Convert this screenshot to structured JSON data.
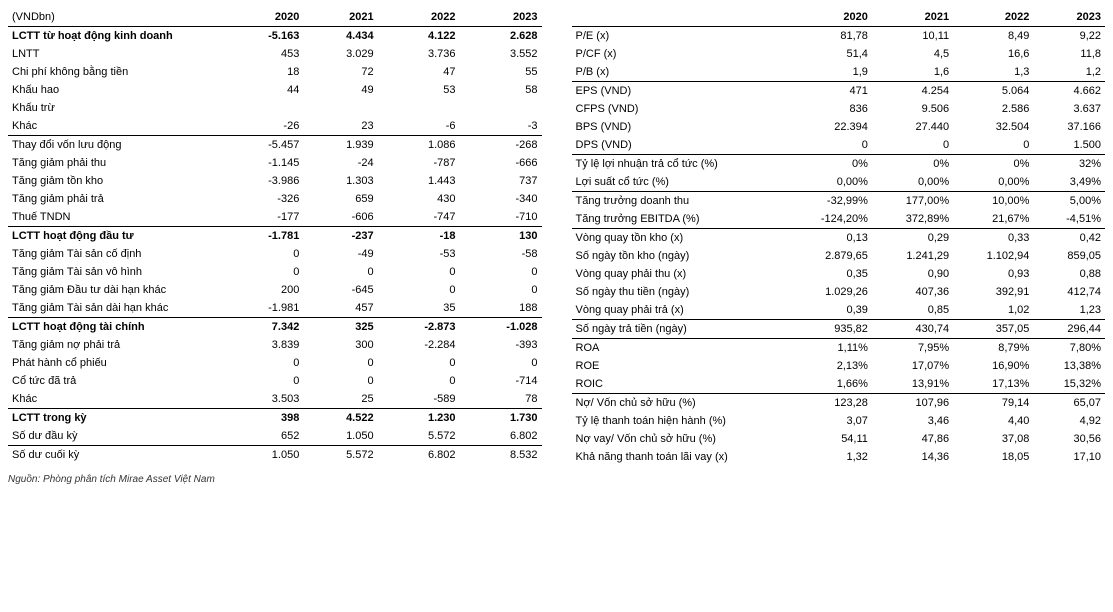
{
  "years": [
    "2020",
    "2021",
    "2022",
    "2023"
  ],
  "left_header": "(VNDbn)",
  "right_header": "",
  "source": "Nguồn: Phòng phân tích Mirae Asset Việt Nam",
  "left": [
    {
      "label": "LCTT từ hoạt động kinh doanh",
      "v": [
        "-5.163",
        "4.434",
        "4.122",
        "2.628"
      ],
      "bold": true,
      "sep": false
    },
    {
      "label": "LNTT",
      "v": [
        "453",
        "3.029",
        "3.736",
        "3.552"
      ],
      "bold": false,
      "sep": false
    },
    {
      "label": "Chi phí không bằng tiền",
      "v": [
        "18",
        "72",
        "47",
        "55"
      ],
      "bold": false,
      "sep": false
    },
    {
      "label": "Khấu hao",
      "v": [
        "44",
        "49",
        "53",
        "58"
      ],
      "bold": false,
      "sep": false
    },
    {
      "label": "Khấu trừ",
      "v": [
        "",
        "",
        "",
        ""
      ],
      "bold": false,
      "sep": false
    },
    {
      "label": "Khác",
      "v": [
        "-26",
        "23",
        "-6",
        "-3"
      ],
      "bold": false,
      "sep": false
    },
    {
      "label": "Thay đổi vốn lưu động",
      "v": [
        "-5.457",
        "1.939",
        "1.086",
        "-268"
      ],
      "bold": false,
      "sep": true
    },
    {
      "label": "Tăng giảm phải thu",
      "v": [
        "-1.145",
        "-24",
        "-787",
        "-666"
      ],
      "bold": false,
      "sep": false
    },
    {
      "label": "Tăng giảm tồn kho",
      "v": [
        "-3.986",
        "1.303",
        "1.443",
        "737"
      ],
      "bold": false,
      "sep": false
    },
    {
      "label": "Tăng giảm phải trả",
      "v": [
        "-326",
        "659",
        "430",
        "-340"
      ],
      "bold": false,
      "sep": false
    },
    {
      "label": "Thuế TNDN",
      "v": [
        "-177",
        "-606",
        "-747",
        "-710"
      ],
      "bold": false,
      "sep": false
    },
    {
      "label": "LCTT hoạt động đầu tư",
      "v": [
        "-1.781",
        "-237",
        "-18",
        "130"
      ],
      "bold": true,
      "sep": true
    },
    {
      "label": "Tăng giảm Tài sản cố định",
      "v": [
        "0",
        "-49",
        "-53",
        "-58"
      ],
      "bold": false,
      "sep": false
    },
    {
      "label": "Tăng giảm Tài sản vô hình",
      "v": [
        "0",
        "0",
        "0",
        "0"
      ],
      "bold": false,
      "sep": false
    },
    {
      "label": "Tăng giảm Đầu tư dài hạn khác",
      "v": [
        "200",
        "-645",
        "0",
        "0"
      ],
      "bold": false,
      "sep": false
    },
    {
      "label": "Tăng giảm Tài sản dài hạn khác",
      "v": [
        "-1.981",
        "457",
        "35",
        "188"
      ],
      "bold": false,
      "sep": false
    },
    {
      "label": "LCTT hoạt động tài chính",
      "v": [
        "7.342",
        "325",
        "-2.873",
        "-1.028"
      ],
      "bold": true,
      "sep": true
    },
    {
      "label": "Tăng giảm nợ phải trả",
      "v": [
        "3.839",
        "300",
        "-2.284",
        "-393"
      ],
      "bold": false,
      "sep": false
    },
    {
      "label": "Phát hành cổ phiếu",
      "v": [
        "0",
        "0",
        "0",
        "0"
      ],
      "bold": false,
      "sep": false
    },
    {
      "label": "Cổ tức đã trả",
      "v": [
        "0",
        "0",
        "0",
        "-714"
      ],
      "bold": false,
      "sep": false
    },
    {
      "label": "Khác",
      "v": [
        "3.503",
        "25",
        "-589",
        "78"
      ],
      "bold": false,
      "sep": false
    },
    {
      "label": "LCTT trong kỳ",
      "v": [
        "398",
        "4.522",
        "1.230",
        "1.730"
      ],
      "bold": true,
      "sep": true
    },
    {
      "label": "Số dư đầu kỳ",
      "v": [
        "652",
        "1.050",
        "5.572",
        "6.802"
      ],
      "bold": false,
      "sep": false
    },
    {
      "label": "Số dư cuối kỳ",
      "v": [
        "1.050",
        "5.572",
        "6.802",
        "8.532"
      ],
      "bold": false,
      "sep": true
    }
  ],
  "right": [
    {
      "label": "P/E (x)",
      "v": [
        "81,78",
        "10,11",
        "8,49",
        "9,22"
      ],
      "bold": false,
      "sep": false
    },
    {
      "label": "P/CF (x)",
      "v": [
        "51,4",
        "4,5",
        "16,6",
        "11,8"
      ],
      "bold": false,
      "sep": false
    },
    {
      "label": "P/B (x)",
      "v": [
        "1,9",
        "1,6",
        "1,3",
        "1,2"
      ],
      "bold": false,
      "sep": false
    },
    {
      "label": "EPS (VND)",
      "v": [
        "471",
        "4.254",
        "5.064",
        "4.662"
      ],
      "bold": false,
      "sep": true
    },
    {
      "label": "CFPS (VND)",
      "v": [
        "836",
        "9.506",
        "2.586",
        "3.637"
      ],
      "bold": false,
      "sep": false
    },
    {
      "label": "BPS (VND)",
      "v": [
        "22.394",
        "27.440",
        "32.504",
        "37.166"
      ],
      "bold": false,
      "sep": false
    },
    {
      "label": "DPS (VND)",
      "v": [
        "0",
        "0",
        "0",
        "1.500"
      ],
      "bold": false,
      "sep": false
    },
    {
      "label": "Tỷ lệ lợi nhuận trả cổ tức (%)",
      "v": [
        "0%",
        "0%",
        "0%",
        "32%"
      ],
      "bold": false,
      "sep": true
    },
    {
      "label": "Lợi suất cổ tức (%)",
      "v": [
        "0,00%",
        "0,00%",
        "0,00%",
        "3,49%"
      ],
      "bold": false,
      "sep": false
    },
    {
      "label": "Tăng trưởng doanh thu",
      "v": [
        "-32,99%",
        "177,00%",
        "10,00%",
        "5,00%"
      ],
      "bold": false,
      "sep": true
    },
    {
      "label": "Tăng trưởng EBITDA  (%)",
      "v": [
        "-124,20%",
        "372,89%",
        "21,67%",
        "-4,51%"
      ],
      "bold": false,
      "sep": false
    },
    {
      "label": "Vòng quay tồn kho (x)",
      "v": [
        "0,13",
        "0,29",
        "0,33",
        "0,42"
      ],
      "bold": false,
      "sep": true
    },
    {
      "label": "Số ngày tồn kho (ngày)",
      "v": [
        "2.879,65",
        "1.241,29",
        "1.102,94",
        "859,05"
      ],
      "bold": false,
      "sep": false
    },
    {
      "label": "Vòng quay phải thu (x)",
      "v": [
        "0,35",
        "0,90",
        "0,93",
        "0,88"
      ],
      "bold": false,
      "sep": false
    },
    {
      "label": "Số ngày thu tiền (ngày)",
      "v": [
        "1.029,26",
        "407,36",
        "392,91",
        "412,74"
      ],
      "bold": false,
      "sep": false
    },
    {
      "label": "Vòng quay phải trả (x)",
      "v": [
        "0,39",
        "0,85",
        "1,02",
        "1,23"
      ],
      "bold": false,
      "sep": false
    },
    {
      "label": "Số ngày trả tiền (ngày)",
      "v": [
        "935,82",
        "430,74",
        "357,05",
        "296,44"
      ],
      "bold": false,
      "sep": true
    },
    {
      "label": "ROA",
      "v": [
        "1,11%",
        "7,95%",
        "8,79%",
        "7,80%"
      ],
      "bold": false,
      "sep": true
    },
    {
      "label": "ROE",
      "v": [
        "2,13%",
        "17,07%",
        "16,90%",
        "13,38%"
      ],
      "bold": false,
      "sep": false
    },
    {
      "label": "ROIC",
      "v": [
        "1,66%",
        "13,91%",
        "17,13%",
        "15,32%"
      ],
      "bold": false,
      "sep": false
    },
    {
      "label": "Nợ/ Vốn chủ sở hữu (%)",
      "v": [
        "123,28",
        "107,96",
        "79,14",
        "65,07"
      ],
      "bold": false,
      "sep": true
    },
    {
      "label": "Tỷ lệ thanh toán hiện hành (%)",
      "v": [
        "3,07",
        "3,46",
        "4,40",
        "4,92"
      ],
      "bold": false,
      "sep": false
    },
    {
      "label": "Nợ vay/ Vốn chủ sở hữu (%)",
      "v": [
        "54,11",
        "47,86",
        "37,08",
        "30,56"
      ],
      "bold": false,
      "sep": false
    },
    {
      "label": "Khả năng thanh toán lãi vay (x)",
      "v": [
        "1,32",
        "14,36",
        "18,05",
        "17,10"
      ],
      "bold": false,
      "sep": false
    }
  ]
}
